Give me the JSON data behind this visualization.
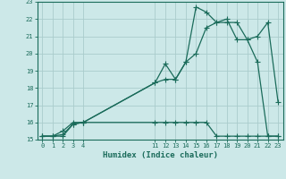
{
  "xlabel": "Humidex (Indice chaleur)",
  "bg_color": "#cce8e8",
  "grid_color": "#aacccc",
  "line_color": "#1a6b5a",
  "ylim": [
    15,
    23
  ],
  "xlim": [
    0,
    23
  ],
  "yticks": [
    15,
    16,
    17,
    18,
    19,
    20,
    21,
    22,
    23
  ],
  "xticks": [
    0,
    1,
    2,
    3,
    4,
    11,
    12,
    13,
    14,
    15,
    16,
    17,
    18,
    19,
    20,
    21,
    22,
    23
  ],
  "line1_x": [
    0,
    1,
    2,
    3,
    4,
    11,
    12,
    13,
    14,
    15,
    16,
    17,
    18,
    19,
    20,
    21,
    22,
    23
  ],
  "line1_y": [
    15.2,
    15.2,
    15.2,
    15.9,
    16.0,
    16.0,
    16.0,
    16.0,
    16.0,
    16.0,
    16.0,
    15.2,
    15.2,
    15.2,
    15.2,
    15.2,
    15.2,
    15.2
  ],
  "line2_x": [
    0,
    1,
    2,
    3,
    4,
    11,
    12,
    13,
    14,
    15,
    16,
    17,
    18,
    19,
    20,
    21,
    22,
    23
  ],
  "line2_y": [
    15.2,
    15.2,
    15.3,
    15.9,
    16.0,
    18.3,
    18.5,
    18.5,
    19.5,
    20.0,
    21.5,
    21.8,
    21.8,
    21.8,
    20.8,
    21.0,
    21.8,
    17.2
  ],
  "line3_x": [
    0,
    1,
    2,
    3,
    4,
    11,
    12,
    13,
    14,
    15,
    16,
    17,
    18,
    19,
    20,
    21,
    22,
    23
  ],
  "line3_y": [
    15.2,
    15.2,
    15.5,
    16.0,
    16.0,
    18.3,
    19.4,
    18.5,
    19.5,
    22.7,
    22.4,
    21.8,
    22.0,
    20.8,
    20.8,
    19.5,
    15.2,
    15.2
  ]
}
